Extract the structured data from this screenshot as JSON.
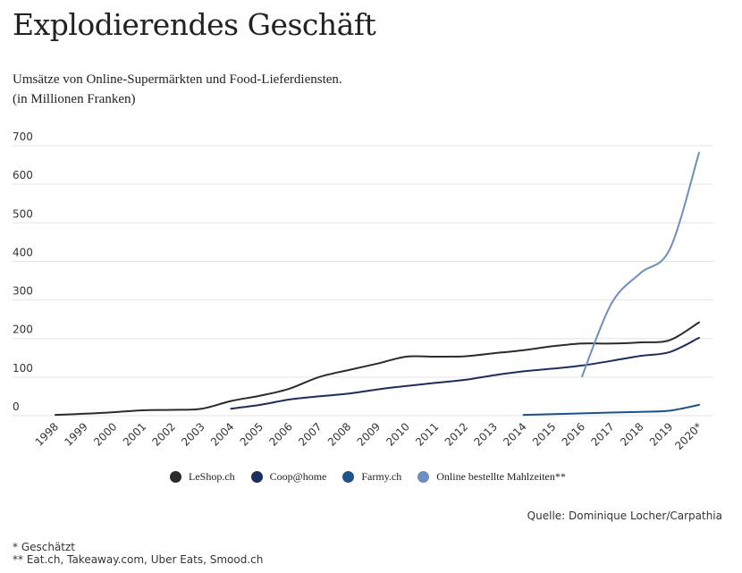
{
  "header": {
    "title": "Explodierendes Geschäft",
    "subtitle_line1": "Umsätze von Online-Supermärkten und Food-Lieferdiensten.",
    "subtitle_line2": "(in Millionen Franken)"
  },
  "chart_data": {
    "type": "line",
    "categories": [
      "1998",
      "1999",
      "2000",
      "2001",
      "2002",
      "2003",
      "2004",
      "2005",
      "2006",
      "2007",
      "2008",
      "2009",
      "2010",
      "2011",
      "2012",
      "2013",
      "2014",
      "2015",
      "2016",
      "2017",
      "2018",
      "2019",
      "2020*"
    ],
    "ylim": [
      0,
      700
    ],
    "yticks": [
      0,
      100,
      200,
      300,
      400,
      500,
      600,
      700
    ],
    "grid": true,
    "legend_position": "bottom",
    "series": [
      {
        "name": "LeShop.ch",
        "color": "#2b2b2b",
        "values": [
          2,
          5,
          9,
          14,
          15,
          18,
          38,
          52,
          70,
          100,
          118,
          135,
          153,
          153,
          154,
          162,
          170,
          180,
          187,
          187,
          190,
          196,
          242
        ]
      },
      {
        "name": "Coop@home",
        "color": "#1c2d5e",
        "values": [
          null,
          null,
          null,
          null,
          null,
          null,
          18,
          28,
          42,
          50,
          57,
          68,
          77,
          85,
          93,
          105,
          115,
          122,
          130,
          142,
          155,
          165,
          202
        ]
      },
      {
        "name": "Farmy.ch",
        "color": "#1d5389",
        "values": [
          null,
          null,
          null,
          null,
          null,
          null,
          null,
          null,
          null,
          null,
          null,
          null,
          null,
          null,
          null,
          null,
          2,
          4,
          6,
          8,
          10,
          13,
          28
        ]
      },
      {
        "name": "Online bestellte Mahlzeiten**",
        "color": "#6b8fc0",
        "values": [
          null,
          null,
          null,
          null,
          null,
          null,
          null,
          null,
          null,
          null,
          null,
          null,
          null,
          null,
          null,
          null,
          null,
          null,
          102,
          290,
          370,
          432,
          682
        ]
      }
    ]
  },
  "footer": {
    "source": "Quelle: Dominique Locher/Carpathia",
    "note1": "* Geschätzt",
    "note2": "** Eat.ch, Takeaway.com, Uber Eats, Smood.ch"
  }
}
